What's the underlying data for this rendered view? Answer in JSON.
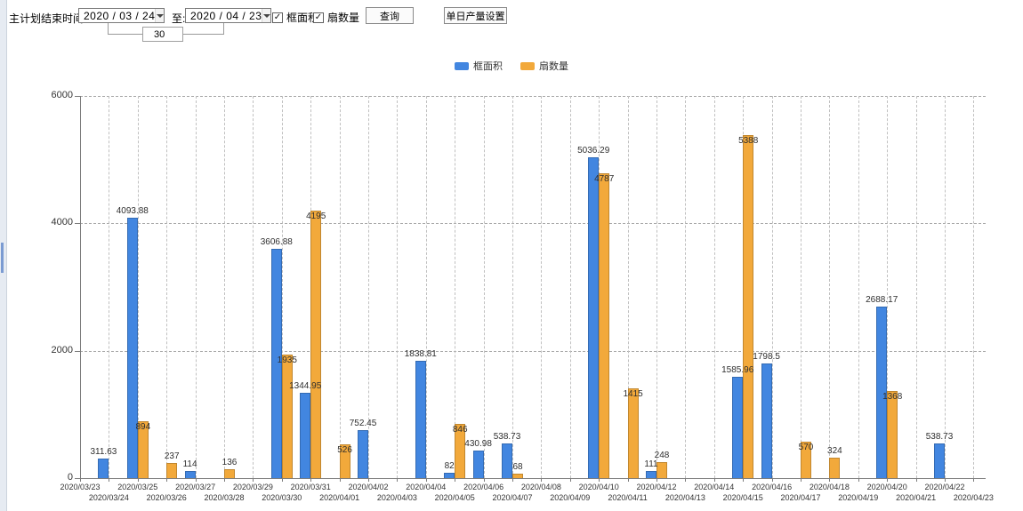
{
  "toolbar": {
    "label_start": "主计划结束时间:",
    "start_date": "2020 / 03 / 24",
    "label_to": "至:",
    "end_date": "2020 / 04 / 23",
    "interval_days": "30",
    "checkbox_frame_area": "框面积",
    "checkbox_fan_count": "扇数量",
    "query_button": "查询",
    "daily_output_button": "单日产量设置"
  },
  "colors": {
    "frame_area_blue": "#4286e0",
    "fan_count_orange": "#f2a93b",
    "axis_gray": "#7c7c7c"
  },
  "chart_data": {
    "type": "bar",
    "title": "",
    "xlabel": "",
    "ylabel": "",
    "ylim": [
      0,
      6000
    ],
    "yticks": [
      0,
      2000,
      4000,
      6000
    ],
    "grid": true,
    "legend_position": "top",
    "categories": [
      "2020/03/23",
      "2020/03/24",
      "2020/03/25",
      "2020/03/26",
      "2020/03/27",
      "2020/03/28",
      "2020/03/29",
      "2020/03/30",
      "2020/03/31",
      "2020/04/01",
      "2020/04/02",
      "2020/04/03",
      "2020/04/04",
      "2020/04/05",
      "2020/04/06",
      "2020/04/07",
      "2020/04/08",
      "2020/04/09",
      "2020/04/10",
      "2020/04/11",
      "2020/04/12",
      "2020/04/13",
      "2020/04/14",
      "2020/04/15",
      "2020/04/16",
      "2020/04/17",
      "2020/04/18",
      "2020/04/19",
      "2020/04/20",
      "2020/04/21",
      "2020/04/22",
      "2020/04/23"
    ],
    "series": [
      {
        "name": "框面积",
        "color": "#4286e0",
        "values": [
          null,
          311.63,
          4093.88,
          null,
          114,
          null,
          null,
          3606.88,
          1344.95,
          null,
          752.45,
          null,
          1838.81,
          82,
          430.98,
          538.73,
          null,
          null,
          5036.29,
          null,
          111,
          null,
          null,
          1585.96,
          1798.5,
          null,
          null,
          null,
          2688.17,
          null,
          538.73,
          null
        ]
      },
      {
        "name": "扇数量",
        "color": "#f2a93b",
        "values": [
          null,
          null,
          894,
          237,
          null,
          136,
          null,
          1935,
          4195,
          526,
          null,
          null,
          null,
          846,
          null,
          68,
          null,
          null,
          4787,
          1415,
          248,
          null,
          null,
          5388,
          null,
          570,
          324,
          null,
          1368,
          null,
          null,
          null
        ]
      }
    ]
  }
}
